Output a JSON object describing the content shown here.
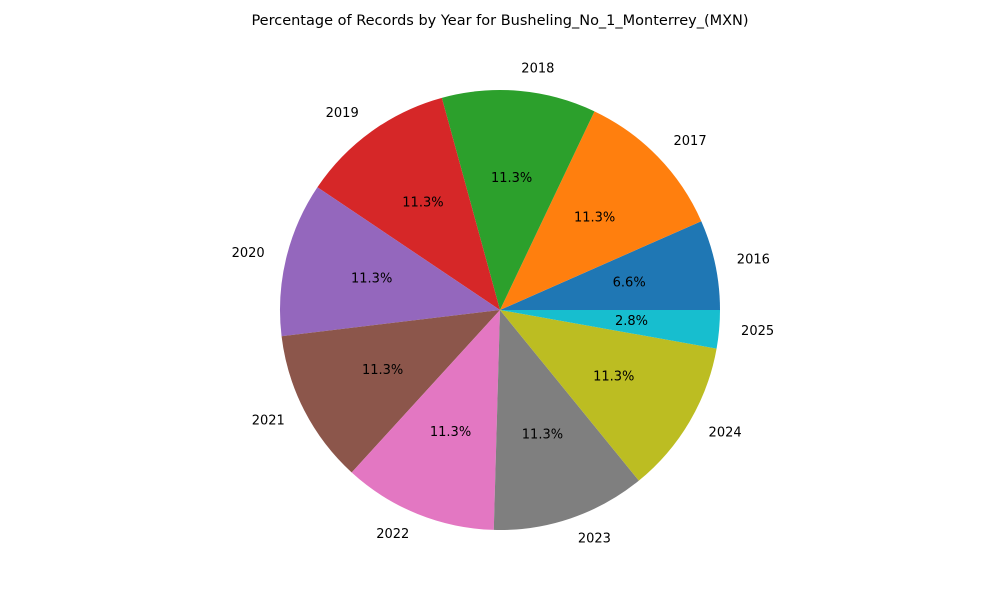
{
  "chart_data": {
    "type": "pie",
    "title": "Percentage of Records by Year for Busheling_No_1_Monterrey_(MXN)",
    "categories": [
      "2016",
      "2017",
      "2018",
      "2019",
      "2020",
      "2021",
      "2022",
      "2023",
      "2024",
      "2025"
    ],
    "values": [
      6.6,
      11.3,
      11.3,
      11.3,
      11.3,
      11.3,
      11.3,
      11.3,
      11.3,
      2.8
    ],
    "value_labels": [
      "6.6%",
      "11.3%",
      "11.3%",
      "11.3%",
      "11.3%",
      "11.3%",
      "11.3%",
      "11.3%",
      "11.3%",
      "2.8%"
    ],
    "colors": [
      "#1f77b4",
      "#ff7f0e",
      "#2ca02c",
      "#d62728",
      "#9467bd",
      "#8c564b",
      "#e377c2",
      "#7f7f7f",
      "#bcbd22",
      "#17becf"
    ],
    "start_angle": 0,
    "direction": "counterclockwise",
    "legend": "none"
  }
}
